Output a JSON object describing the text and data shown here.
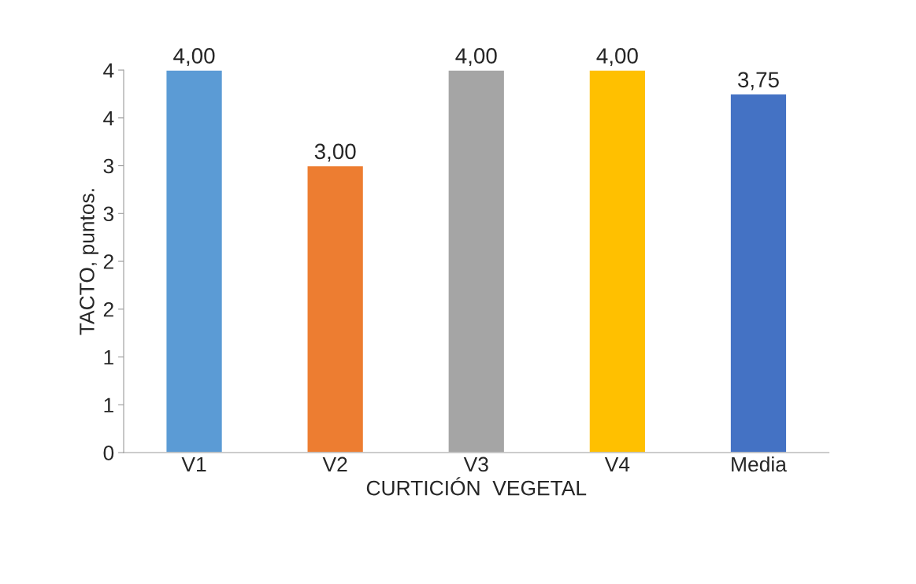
{
  "chart_data": {
    "type": "bar",
    "xlabel": "CURTICIÓN  VEGETAL",
    "ylabel": "TACTO, puntos.",
    "categories": [
      "V1",
      "V2",
      "V3",
      "V4",
      "Media"
    ],
    "values": [
      4,
      3,
      4,
      4,
      3.75
    ],
    "colors": [
      "#5b9bd5",
      "#ed7d31",
      "#a5a5a5",
      "#ffc000",
      "#4472c4"
    ],
    "value_labels": [
      "4,00",
      "3,00",
      "4,00",
      "4,00",
      "3,75"
    ],
    "ylim": [
      0,
      4
    ],
    "yticks": [
      0,
      {
        "value": 0.5,
        "label": "1"
      },
      1,
      {
        "value": 1.5,
        "label": "2"
      },
      2,
      {
        "value": 2.5,
        "label": "3"
      },
      3,
      {
        "value": 3.5,
        "label": "4"
      },
      4
    ],
    "grid": false
  }
}
